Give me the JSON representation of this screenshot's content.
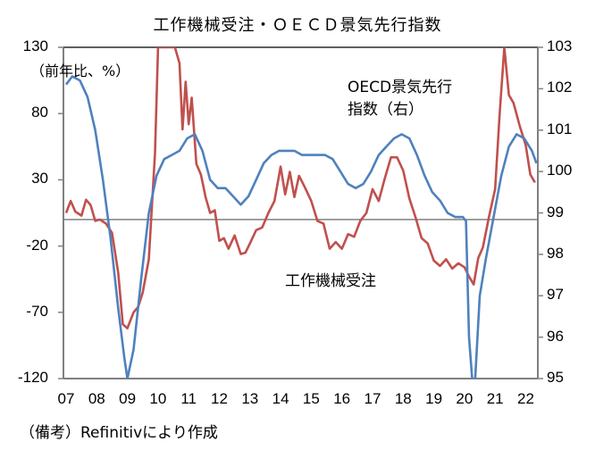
{
  "title": "工作機械受注・ＯＥＣＤ景気先行指数",
  "unit_label": "（前年比、%）",
  "footnote": "（備考）Refinitivにより作成",
  "labels": {
    "oecd_line1": "OECD景気先行",
    "oecd_line2": "指数（右）",
    "orders": "工作機械受注"
  },
  "colors": {
    "orders": "#c0504d",
    "oecd": "#4f81bd",
    "axis": "#808080"
  },
  "chart_data": {
    "type": "line",
    "title": "工作機械受注・ＯＥＣＤ景気先行指数",
    "xlabel": "",
    "ylabel": "（前年比、%）",
    "y2label": "OECD景気先行指数（右）",
    "ylim": [
      -120,
      130
    ],
    "y2lim": [
      95,
      103
    ],
    "yticks": [
      "130",
      "80",
      "30",
      "-20",
      "-70",
      "-120"
    ],
    "y2ticks": [
      "103",
      "102",
      "101",
      "100",
      "99",
      "98",
      "97",
      "96",
      "95"
    ],
    "xticks": [
      "07",
      "08",
      "09",
      "10",
      "11",
      "12",
      "13",
      "14",
      "15",
      "16",
      "17",
      "18",
      "19",
      "20",
      "21",
      "22"
    ],
    "grid": false,
    "legend": "inline labels",
    "series": [
      {
        "name": "工作機械受注",
        "axis": "left",
        "x": [
          2007.0,
          2007.15,
          2007.3,
          2007.5,
          2007.65,
          2007.8,
          2007.95,
          2008.1,
          2008.3,
          2008.5,
          2008.7,
          2008.85,
          2009.0,
          2009.2,
          2009.35,
          2009.5,
          2009.7,
          2009.9,
          2010.0,
          2010.1,
          2010.25,
          2010.4,
          2010.55,
          2010.7,
          2010.8,
          2010.9,
          2011.0,
          2011.1,
          2011.25,
          2011.4,
          2011.55,
          2011.7,
          2011.85,
          2012.0,
          2012.15,
          2012.3,
          2012.5,
          2012.7,
          2012.85,
          2013.0,
          2013.2,
          2013.4,
          2013.6,
          2013.8,
          2014.0,
          2014.15,
          2014.3,
          2014.45,
          2014.6,
          2014.8,
          2015.0,
          2015.2,
          2015.4,
          2015.6,
          2015.8,
          2016.0,
          2016.2,
          2016.4,
          2016.6,
          2016.8,
          2017.0,
          2017.2,
          2017.4,
          2017.6,
          2017.8,
          2018.0,
          2018.2,
          2018.4,
          2018.6,
          2018.8,
          2019.0,
          2019.2,
          2019.4,
          2019.6,
          2019.8,
          2020.0,
          2020.15,
          2020.3,
          2020.45,
          2020.6,
          2020.8,
          2021.0,
          2021.15,
          2021.3,
          2021.45,
          2021.6,
          2021.8,
          2022.0,
          2022.15,
          2022.3
        ],
        "values": [
          5,
          14,
          6,
          3,
          15,
          11,
          -1,
          0,
          -3,
          -10,
          -40,
          -79,
          -82,
          -70,
          -66,
          -55,
          -30,
          50,
          130,
          130,
          130,
          130,
          130,
          118,
          68,
          104,
          72,
          92,
          42,
          34,
          17,
          5,
          7,
          -16,
          -14,
          -22,
          -12,
          -26,
          -25,
          -18,
          -8,
          -6,
          5,
          14,
          40,
          19,
          36,
          17,
          33,
          24,
          14,
          -1,
          -3,
          -22,
          -17,
          -22,
          -11,
          -13,
          -1,
          5,
          23,
          14,
          31,
          47,
          47,
          37,
          16,
          2,
          -14,
          -18,
          -31,
          -35,
          -30,
          -37,
          -33,
          -36,
          -43,
          -49,
          -29,
          -21,
          2,
          23,
          80,
          130,
          94,
          88,
          71,
          56,
          34,
          28
        ]
      },
      {
        "name": "OECD景気先行指数（右）",
        "axis": "right",
        "x": [
          2007.0,
          2007.2,
          2007.45,
          2007.7,
          2007.95,
          2008.2,
          2008.45,
          2008.7,
          2008.9,
          2009.0,
          2009.2,
          2009.45,
          2009.7,
          2009.95,
          2010.2,
          2010.45,
          2010.7,
          2010.95,
          2011.2,
          2011.45,
          2011.7,
          2011.95,
          2012.2,
          2012.45,
          2012.7,
          2012.95,
          2013.2,
          2013.45,
          2013.7,
          2013.95,
          2014.2,
          2014.45,
          2014.7,
          2014.95,
          2015.2,
          2015.45,
          2015.7,
          2015.95,
          2016.2,
          2016.45,
          2016.7,
          2016.95,
          2017.2,
          2017.45,
          2017.7,
          2017.95,
          2018.2,
          2018.45,
          2018.7,
          2018.95,
          2019.2,
          2019.45,
          2019.7,
          2019.95,
          2020.05,
          2020.15,
          2020.25,
          2020.35,
          2020.5,
          2020.7,
          2020.95,
          2021.2,
          2021.45,
          2021.7,
          2021.95,
          2022.2,
          2022.35
        ],
        "values": [
          102.1,
          102.3,
          102.2,
          101.8,
          101.0,
          99.8,
          98.4,
          96.7,
          95.5,
          95.0,
          95.7,
          97.4,
          99.0,
          99.9,
          100.3,
          100.4,
          100.5,
          100.8,
          100.9,
          100.5,
          99.8,
          99.6,
          99.6,
          99.4,
          99.2,
          99.4,
          99.8,
          100.2,
          100.4,
          100.5,
          100.5,
          100.5,
          100.4,
          100.4,
          100.4,
          100.4,
          100.3,
          100.0,
          99.7,
          99.6,
          99.7,
          100.0,
          100.4,
          100.6,
          100.8,
          100.9,
          100.8,
          100.4,
          99.9,
          99.5,
          99.3,
          99.0,
          98.9,
          98.9,
          98.8,
          96.0,
          95.0,
          95.0,
          97.0,
          97.9,
          98.9,
          99.9,
          100.6,
          100.9,
          100.8,
          100.5,
          100.2
        ]
      }
    ]
  }
}
